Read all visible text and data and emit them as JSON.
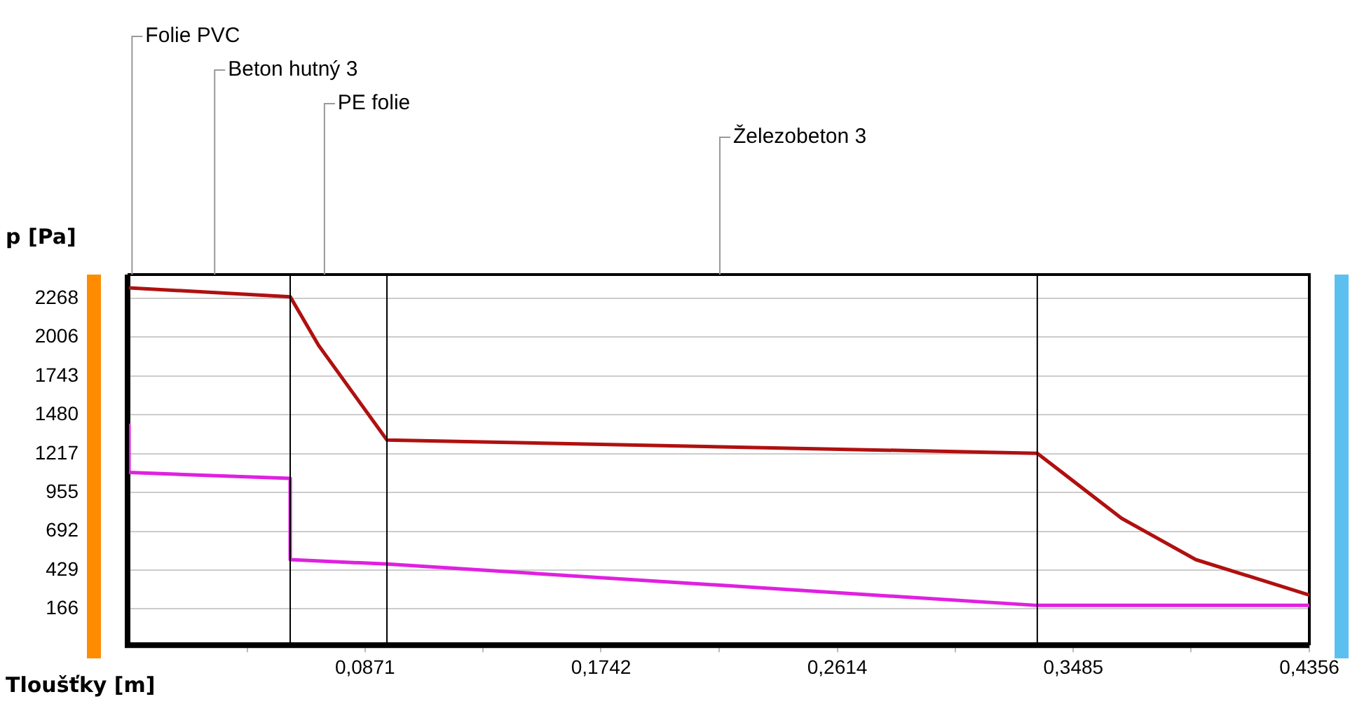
{
  "chart_data": {
    "type": "line",
    "xlabel": "Tloušťky [m]",
    "ylabel": "p [Pa]",
    "xlim": [
      0,
      0.4356
    ],
    "ylim": [
      -70,
      2430
    ],
    "xticks": [
      {
        "value": 0.0436,
        "label": null
      },
      {
        "value": 0.0871,
        "label": "0,0871"
      },
      {
        "value": 0.1307,
        "label": null
      },
      {
        "value": 0.1742,
        "label": "0,1742"
      },
      {
        "value": 0.2178,
        "label": null
      },
      {
        "value": 0.2614,
        "label": "0,2614"
      },
      {
        "value": 0.3049,
        "label": null
      },
      {
        "value": 0.3485,
        "label": "0,3485"
      },
      {
        "value": 0.392,
        "label": null
      },
      {
        "value": 0.4356,
        "label": "0,4356"
      }
    ],
    "yticks": [
      166,
      429,
      692,
      955,
      1217,
      1480,
      1743,
      2006,
      2268
    ],
    "grid": "y",
    "legend": false,
    "marker": "none",
    "line_style": "solid",
    "series": [
      {
        "color": "#b01010",
        "x": [
          0,
          0.0595,
          0.07,
          0.0952,
          0.3352,
          0.3663,
          0.3937,
          0.4356
        ],
        "values": [
          2340,
          2280,
          1950,
          1310,
          1220,
          780,
          500,
          260
        ]
      },
      {
        "color": "#e020e0",
        "x": [
          0,
          0,
          0.0595,
          0.0595,
          0.0952,
          0.3352,
          0.4356
        ],
        "values": [
          1410,
          1090,
          1050,
          500,
          470,
          190,
          190
        ]
      }
    ],
    "ref_lines": [
      {
        "axis": "x",
        "value": 0.0595,
        "color": "#000000"
      },
      {
        "axis": "x",
        "value": 0.0952,
        "color": "#000000"
      },
      {
        "axis": "x",
        "value": 0.3352,
        "color": "#000000"
      }
    ],
    "annotations": [
      "Folie PVC",
      "Beton hutný 3",
      "PE folie",
      "Železobeton 3"
    ]
  }
}
